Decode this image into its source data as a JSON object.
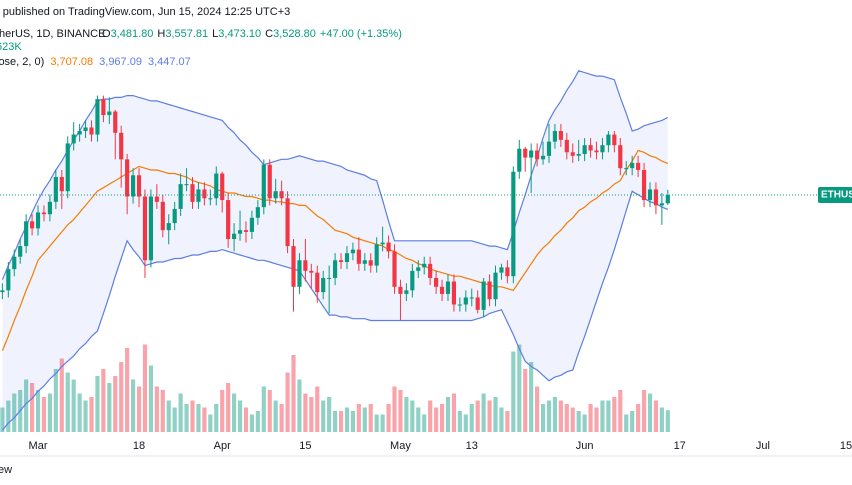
{
  "header": {
    "published": "r published on TradingView.com, Jun 15, 2024 12:25 UTC+3",
    "symbol": "therUS, 1D, BINANCE",
    "ohlc": [
      {
        "k": "O",
        "v": "3,481.80"
      },
      {
        "k": "H",
        "v": "3,557.81"
      },
      {
        "k": "L",
        "v": "3,473.10"
      },
      {
        "k": "C",
        "v": "3,528.80"
      }
    ],
    "change": "+47.00 (+1.35%)",
    "volume": "623K",
    "bb_name": "lose, 2, 0)",
    "bb_mid": "3,707.08",
    "bb_upper": "3,967.09",
    "bb_lower": "3,447.07",
    "price_tag": "ETHUS",
    "footer": "ew"
  },
  "chart_data": {
    "type": "candlestick",
    "up_color": "#089981",
    "down_color": "#f23645",
    "band_color": "#5b7ee5",
    "mid_color": "#f57c00",
    "ylim": [
      2190,
      4630
    ],
    "xlim": [
      -0.4,
      143
    ],
    "volume_lim": [
      0,
      4000000
    ],
    "xticks": [
      {
        "value": 6,
        "label": "Mar"
      },
      {
        "value": 23,
        "label": "18"
      },
      {
        "value": 37,
        "label": "Apr"
      },
      {
        "value": 51,
        "label": "15"
      },
      {
        "value": 67,
        "label": "May"
      },
      {
        "value": 79,
        "label": "13"
      },
      {
        "value": 98,
        "label": "Jun"
      },
      {
        "value": 114,
        "label": "17"
      },
      {
        "value": 128,
        "label": "Jul"
      },
      {
        "value": 142,
        "label": "15"
      }
    ],
    "open": [
      2980,
      2990,
      3110,
      3180,
      3240,
      3380,
      3340,
      3430,
      3420,
      3490,
      3630,
      3550,
      3820,
      3870,
      3890,
      3910,
      3870,
      4070,
      3980,
      4000,
      3880,
      3730,
      3520,
      3640,
      3520,
      3160,
      3520,
      3490,
      3330,
      3370,
      3450,
      3590,
      3590,
      3490,
      3560,
      3510,
      3510,
      3650,
      3500,
      3280,
      3310,
      3330,
      3320,
      3400,
      3460,
      3700,
      3510,
      3550,
      3510,
      3240,
      3010,
      3160,
      3100,
      3090,
      2980,
      3060,
      3060,
      3160,
      3150,
      3200,
      3220,
      3140,
      3160,
      3130,
      3250,
      3260,
      3210,
      3010,
      2970,
      2990,
      3100,
      3120,
      3140,
      3060,
      3010,
      2970,
      3040,
      2910,
      2910,
      2950,
      2950,
      2880,
      3040,
      2940,
      3090,
      3120,
      3070,
      3660,
      3790,
      3740,
      3780,
      3730,
      3750,
      3830,
      3890,
      3840,
      3770,
      3750,
      3760,
      3810,
      3780,
      3770,
      3810,
      3870,
      3810,
      3680,
      3680,
      3710,
      3670,
      3500,
      3560,
      3470,
      3481.8
    ],
    "high": [
      3030,
      3150,
      3220,
      3280,
      3420,
      3420,
      3470,
      3470,
      3530,
      3670,
      3670,
      3860,
      3940,
      3930,
      3950,
      3950,
      4090,
      4090,
      4080,
      4010,
      3920,
      3760,
      3680,
      3680,
      3560,
      3560,
      3590,
      3530,
      3420,
      3490,
      3650,
      3680,
      3630,
      3600,
      3600,
      3560,
      3690,
      3660,
      3540,
      3370,
      3440,
      3380,
      3440,
      3500,
      3730,
      3730,
      3620,
      3610,
      3550,
      3280,
      3200,
      3280,
      3140,
      3130,
      3100,
      3130,
      3200,
      3200,
      3240,
      3260,
      3290,
      3200,
      3200,
      3290,
      3350,
      3300,
      3250,
      3050,
      3030,
      3140,
      3160,
      3180,
      3180,
      3100,
      3050,
      3080,
      3080,
      2950,
      2990,
      3000,
      2990,
      3060,
      3080,
      3130,
      3140,
      3160,
      3690,
      3840,
      3800,
      3820,
      3820,
      3830,
      3930,
      3930,
      3930,
      3880,
      3820,
      3840,
      3850,
      3850,
      3830,
      3850,
      3890,
      3890,
      3850,
      3720,
      3750,
      3750,
      3710,
      3600,
      3600,
      3540,
      3557.81
    ],
    "low": [
      2940,
      2950,
      3070,
      3140,
      3200,
      3300,
      3300,
      3380,
      3380,
      3450,
      3450,
      3510,
      3780,
      3830,
      3850,
      3830,
      3830,
      3940,
      3930,
      3730,
      3570,
      3420,
      3480,
      3460,
      3060,
      3120,
      3450,
      3290,
      3250,
      3330,
      3410,
      3550,
      3450,
      3450,
      3470,
      3470,
      3470,
      3430,
      3230,
      3210,
      3270,
      3260,
      3280,
      3360,
      3420,
      3470,
      3480,
      3470,
      3200,
      2870,
      2970,
      3040,
      3000,
      2920,
      2940,
      2860,
      3020,
      3110,
      3110,
      3160,
      3100,
      3100,
      3090,
      3090,
      3210,
      3170,
      2970,
      2820,
      2930,
      2950,
      3060,
      3080,
      3020,
      2970,
      2930,
      2930,
      2870,
      2870,
      2870,
      2900,
      2860,
      2840,
      2900,
      2900,
      3050,
      3030,
      3030,
      3620,
      3660,
      3540,
      3690,
      3700,
      3710,
      3790,
      3800,
      3730,
      3710,
      3720,
      3720,
      3740,
      3730,
      3730,
      3770,
      3770,
      3640,
      3640,
      3640,
      3630,
      3460,
      3460,
      3420,
      3360,
      3473.1
    ],
    "close": [
      2990,
      3110,
      3180,
      3240,
      3380,
      3340,
      3430,
      3420,
      3490,
      3630,
      3550,
      3820,
      3870,
      3890,
      3910,
      3870,
      4070,
      3980,
      4000,
      3880,
      3730,
      3520,
      3640,
      3520,
      3160,
      3520,
      3490,
      3330,
      3370,
      3450,
      3590,
      3590,
      3490,
      3560,
      3510,
      3510,
      3650,
      3500,
      3280,
      3310,
      3330,
      3320,
      3400,
      3460,
      3700,
      3510,
      3550,
      3510,
      3240,
      3010,
      3160,
      3100,
      3090,
      2980,
      3060,
      3060,
      3160,
      3150,
      3200,
      3220,
      3140,
      3160,
      3130,
      3250,
      3260,
      3210,
      3010,
      2970,
      2990,
      3100,
      3120,
      3140,
      3060,
      3010,
      2970,
      3040,
      2910,
      2910,
      2950,
      2950,
      2880,
      3040,
      2940,
      3090,
      3120,
      3070,
      3660,
      3790,
      3740,
      3780,
      3730,
      3750,
      3830,
      3890,
      3840,
      3770,
      3750,
      3760,
      3810,
      3780,
      3770,
      3810,
      3870,
      3810,
      3680,
      3680,
      3710,
      3670,
      3500,
      3560,
      3470,
      3481.8,
      3528.8
    ],
    "volume": [
      700000,
      900000,
      1100000,
      1200000,
      1500000,
      1400000,
      1200000,
      1000000,
      1100000,
      1800000,
      2100000,
      1700000,
      1500000,
      1100000,
      900000,
      1000000,
      1600000,
      1800000,
      1400000,
      1600000,
      2000000,
      2400000,
      1500000,
      1300000,
      2500000,
      1900000,
      1300000,
      1200000,
      900000,
      700000,
      1100000,
      800000,
      900000,
      800000,
      700000,
      500000,
      800000,
      1200000,
      1400000,
      1100000,
      900000,
      700000,
      500000,
      600000,
      1300000,
      1200000,
      900000,
      800000,
      1700000,
      2200000,
      1500000,
      1100000,
      1000000,
      1300000,
      900000,
      1000000,
      600000,
      600000,
      700000,
      600000,
      800000,
      700000,
      800000,
      500000,
      500000,
      800000,
      1300000,
      1200000,
      1000000,
      900000,
      700000,
      500000,
      900000,
      700000,
      800000,
      1000000,
      1100000,
      600000,
      500000,
      800000,
      900000,
      1100000,
      900000,
      1000000,
      700000,
      600000,
      2300000,
      2500000,
      1800000,
      2000000,
      1300000,
      800000,
      900000,
      1000000,
      900000,
      800000,
      700000,
      600000,
      500000,
      800000,
      700000,
      900000,
      900000,
      1000000,
      1200000,
      500000,
      600000,
      800000,
      1200000,
      1100000,
      900000,
      700000,
      623000
    ],
    "bb_upper": [
      3050,
      3130,
      3200,
      3280,
      3350,
      3430,
      3500,
      3560,
      3610,
      3670,
      3720,
      3780,
      3840,
      3890,
      3950,
      4000,
      4060,
      4070,
      4070,
      4080,
      4080,
      4090,
      4090,
      4080,
      4070,
      4060,
      4060,
      4050,
      4040,
      4030,
      4020,
      4010,
      4000,
      3990,
      3980,
      3970,
      3960,
      3950,
      3910,
      3880,
      3840,
      3810,
      3770,
      3740,
      3700,
      3710,
      3720,
      3730,
      3730,
      3740,
      3750,
      3740,
      3730,
      3720,
      3720,
      3710,
      3700,
      3690,
      3670,
      3660,
      3650,
      3640,
      3620,
      3610,
      3500,
      3380,
      3270,
      3270,
      3270,
      3270,
      3270,
      3270,
      3270,
      3270,
      3270,
      3270,
      3270,
      3270,
      3270,
      3270,
      3260,
      3250,
      3240,
      3240,
      3230,
      3220,
      3320,
      3430,
      3530,
      3640,
      3740,
      3850,
      3950,
      4010,
      4060,
      4120,
      4170,
      4230,
      4220,
      4210,
      4200,
      4200,
      4190,
      4180,
      4080,
      3990,
      3890,
      3900,
      3920,
      3930,
      3940,
      3950,
      3967.09
    ],
    "bb_mid": [
      2650,
      2730,
      2820,
      2900,
      2990,
      3070,
      3160,
      3200,
      3240,
      3280,
      3320,
      3360,
      3390,
      3430,
      3470,
      3510,
      3550,
      3570,
      3590,
      3610,
      3630,
      3650,
      3670,
      3690,
      3680,
      3670,
      3670,
      3660,
      3650,
      3650,
      3640,
      3630,
      3610,
      3600,
      3590,
      3580,
      3560,
      3550,
      3540,
      3540,
      3530,
      3520,
      3520,
      3510,
      3500,
      3500,
      3490,
      3490,
      3480,
      3480,
      3470,
      3470,
      3440,
      3410,
      3390,
      3360,
      3330,
      3320,
      3310,
      3290,
      3280,
      3270,
      3260,
      3250,
      3240,
      3220,
      3210,
      3190,
      3170,
      3160,
      3140,
      3130,
      3110,
      3100,
      3090,
      3080,
      3070,
      3070,
      3060,
      3050,
      3040,
      3030,
      3020,
      3010,
      3010,
      3000,
      2990,
      3040,
      3090,
      3140,
      3190,
      3230,
      3260,
      3300,
      3330,
      3370,
      3400,
      3440,
      3460,
      3490,
      3510,
      3540,
      3560,
      3590,
      3610,
      3670,
      3720,
      3780,
      3770,
      3750,
      3740,
      3720,
      3707.08
    ],
    "bb_lower": [
      2200,
      2240,
      2270,
      2310,
      2350,
      2380,
      2420,
      2450,
      2490,
      2520,
      2560,
      2590,
      2620,
      2660,
      2690,
      2730,
      2760,
      2860,
      2960,
      3070,
      3170,
      3270,
      3220,
      3180,
      3130,
      3140,
      3150,
      3150,
      3160,
      3170,
      3170,
      3180,
      3190,
      3190,
      3200,
      3210,
      3210,
      3220,
      3210,
      3200,
      3190,
      3180,
      3170,
      3160,
      3160,
      3150,
      3140,
      3130,
      3120,
      3110,
      3100,
      3050,
      3000,
      2950,
      2900,
      2850,
      2850,
      2840,
      2840,
      2830,
      2830,
      2830,
      2820,
      2820,
      2820,
      2820,
      2820,
      2820,
      2820,
      2820,
      2820,
      2820,
      2820,
      2820,
      2820,
      2820,
      2820,
      2820,
      2820,
      2820,
      2830,
      2840,
      2860,
      2870,
      2880,
      2810,
      2740,
      2660,
      2590,
      2560,
      2540,
      2510,
      2480,
      2500,
      2510,
      2530,
      2540,
      2640,
      2730,
      2830,
      2930,
      3030,
      3120,
      3220,
      3330,
      3440,
      3550,
      3530,
      3510,
      3490,
      3480,
      3460,
      3447.07
    ]
  }
}
